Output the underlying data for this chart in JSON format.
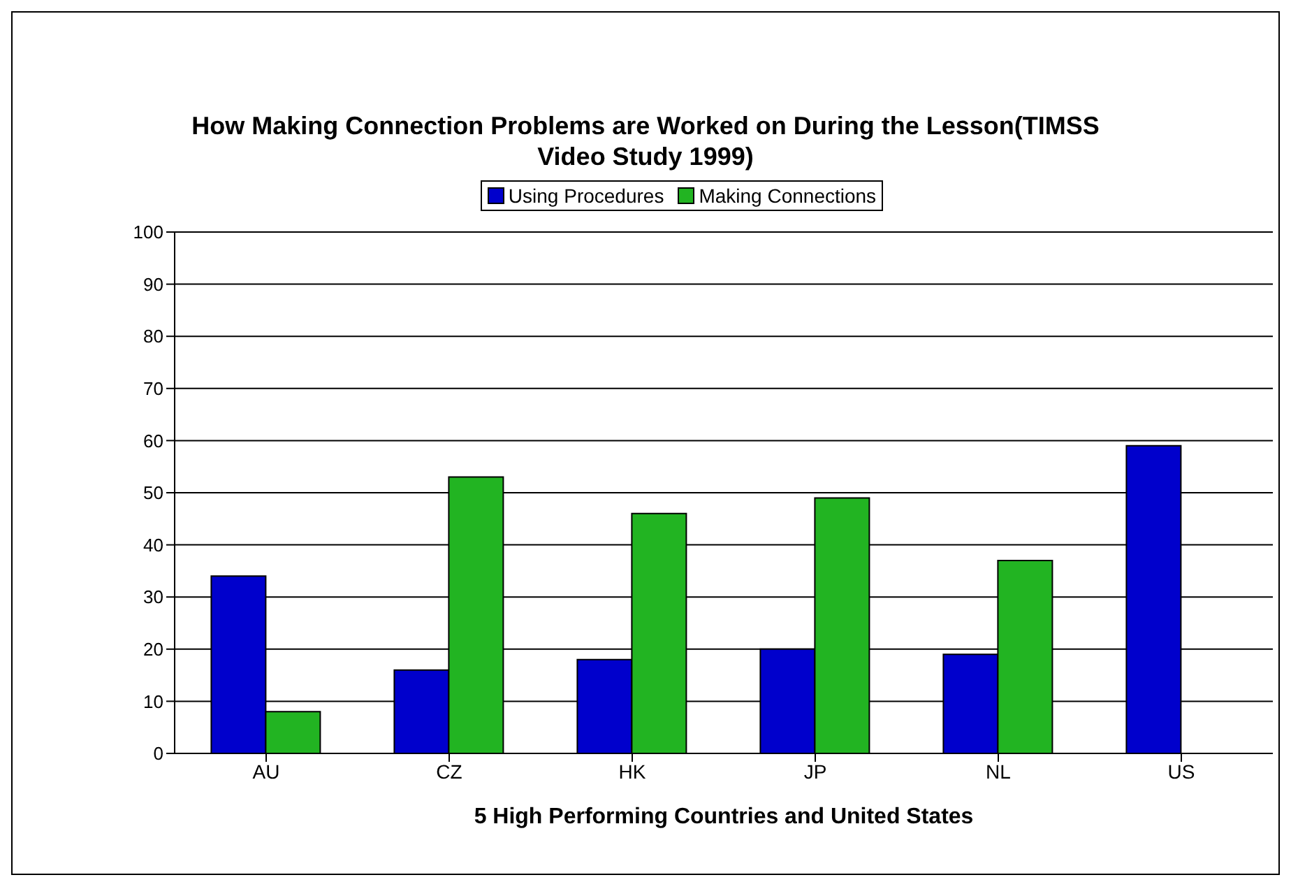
{
  "chart_data": {
    "type": "bar",
    "title": "How Making Connection Problems are Worked on During the Lesson(TIMSS Video Study 1999)",
    "xlabel": "5 High Performing Countries and United States",
    "categories": [
      "AU",
      "CZ",
      "HK",
      "JP",
      "NL",
      "US"
    ],
    "series": [
      {
        "name": "Using Procedures",
        "color": "#0000cc",
        "values": [
          34,
          16,
          18,
          20,
          19,
          59
        ]
      },
      {
        "name": "Making Connections",
        "color": "#22b422",
        "values": [
          8,
          53,
          46,
          49,
          37,
          null
        ]
      }
    ],
    "ylim": [
      0,
      100
    ],
    "yticks": [
      0,
      10,
      20,
      30,
      40,
      50,
      60,
      70,
      80,
      90,
      100
    ],
    "grid": "y",
    "legend": "top"
  }
}
